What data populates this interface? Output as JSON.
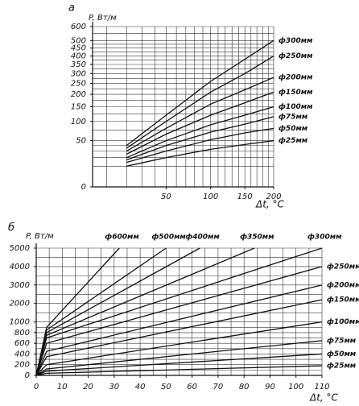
{
  "chart_data": [
    {
      "type": "line",
      "panel_label": "а",
      "ylabel": "P, Вт/м",
      "xlabel": "Δt, °C",
      "xscale": "sqrt",
      "yscale": "sqrt",
      "xlim": [
        5,
        200
      ],
      "ylim": [
        0,
        600
      ],
      "xticks": [
        50,
        100,
        150,
        200
      ],
      "yticks": [
        0,
        50,
        100,
        150,
        200,
        250,
        300,
        350,
        400,
        450,
        500,
        600
      ],
      "xgrid": [
        10,
        20,
        30,
        40,
        50,
        60,
        70,
        80,
        90,
        100,
        110,
        120,
        130,
        140,
        150,
        160,
        170,
        180,
        190,
        200
      ],
      "ygrid": [
        10,
        20,
        30,
        40,
        50,
        75,
        100,
        125,
        150,
        175,
        200,
        225,
        250,
        275,
        300,
        325,
        350,
        375,
        400,
        425,
        450,
        475,
        500,
        550,
        600
      ],
      "grid": true,
      "color": "#111111",
      "series": [
        {
          "name": "ф300мм",
          "x": [
            20,
            50,
            100,
            150,
            200
          ],
          "values": [
            40,
            120,
            260,
            380,
            500
          ]
        },
        {
          "name": "ф250мм",
          "x": [
            20,
            50,
            100,
            150,
            200
          ],
          "values": [
            35,
            100,
            210,
            300,
            400
          ]
        },
        {
          "name": "ф200мм",
          "x": [
            20,
            50,
            100,
            150,
            200
          ],
          "values": [
            30,
            80,
            160,
            220,
            280
          ]
        },
        {
          "name": "ф150мм",
          "x": [
            20,
            50,
            100,
            150,
            200
          ],
          "values": [
            25,
            65,
            120,
            165,
            210
          ]
        },
        {
          "name": "ф100мм",
          "x": [
            20,
            50,
            100,
            150,
            200
          ],
          "values": [
            20,
            50,
            90,
            120,
            150
          ]
        },
        {
          "name": "ф75мм",
          "x": [
            20,
            50,
            100,
            150,
            200
          ],
          "values": [
            17,
            40,
            70,
            92,
            115
          ]
        },
        {
          "name": "ф50мм",
          "x": [
            20,
            50,
            100,
            150,
            200
          ],
          "values": [
            14,
            30,
            52,
            68,
            80
          ]
        },
        {
          "name": "ф25мм",
          "x": [
            20,
            50,
            100,
            150,
            200
          ],
          "values": [
            10,
            20,
            33,
            42,
            50
          ]
        }
      ]
    },
    {
      "type": "line",
      "panel_label": "б",
      "ylabel": "P, Вт/м",
      "xlabel": "Δt, °C",
      "xscale": "linear",
      "yscale": "broken",
      "ybreak": 1000,
      "xlim": [
        0,
        110
      ],
      "ylim": [
        0,
        5000
      ],
      "xticks": [
        0,
        10,
        20,
        30,
        40,
        50,
        60,
        70,
        80,
        90,
        100,
        110
      ],
      "yticks": [
        0,
        200,
        400,
        600,
        800,
        1000,
        2000,
        3000,
        4000,
        5000
      ],
      "xgrid": [
        5,
        10,
        15,
        20,
        25,
        30,
        35,
        40,
        45,
        50,
        55,
        60,
        65,
        70,
        75,
        80,
        85,
        90,
        95,
        100,
        105,
        110
      ],
      "ygrid": [
        100,
        200,
        300,
        400,
        500,
        600,
        700,
        800,
        900,
        1000,
        1500,
        2000,
        2500,
        3000,
        3500,
        4000,
        4500,
        5000
      ],
      "grid": true,
      "color": "#111111",
      "series": [
        {
          "name": "ф600мм",
          "x": [
            0,
            4,
            32
          ],
          "values": [
            0,
            900,
            5000
          ]
        },
        {
          "name": "ф500мм",
          "x": [
            0,
            4,
            50
          ],
          "values": [
            0,
            850,
            5000
          ]
        },
        {
          "name": "ф400мм",
          "x": [
            0,
            4,
            63
          ],
          "values": [
            0,
            800,
            5000
          ]
        },
        {
          "name": "ф350мм",
          "x": [
            0,
            4,
            84
          ],
          "values": [
            0,
            750,
            5000
          ]
        },
        {
          "name": "ф300мм",
          "x": [
            0,
            4,
            110
          ],
          "values": [
            0,
            700,
            5000
          ]
        },
        {
          "name": "ф250мм",
          "x": [
            0,
            4,
            110
          ],
          "values": [
            0,
            600,
            4000
          ]
        },
        {
          "name": "ф200мм",
          "x": [
            0,
            4,
            110
          ],
          "values": [
            0,
            450,
            3000
          ]
        },
        {
          "name": "ф150мм",
          "x": [
            0,
            4,
            110
          ],
          "values": [
            0,
            350,
            2200
          ]
        },
        {
          "name": "ф100мм",
          "x": [
            0,
            4,
            110
          ],
          "values": [
            0,
            200,
            1000
          ]
        },
        {
          "name": "ф75мм",
          "x": [
            0,
            4,
            110
          ],
          "values": [
            0,
            120,
            650
          ]
        },
        {
          "name": "ф50мм",
          "x": [
            0,
            4,
            110
          ],
          "values": [
            0,
            80,
            400
          ]
        },
        {
          "name": "ф25мм",
          "x": [
            0,
            4,
            110
          ],
          "values": [
            0,
            40,
            180
          ]
        }
      ]
    }
  ]
}
